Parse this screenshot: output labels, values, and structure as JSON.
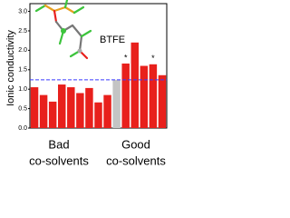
{
  "chart_data": {
    "type": "bar",
    "y_label": "Ionic conductivity",
    "values": [
      1.05,
      0.85,
      0.68,
      1.12,
      1.05,
      0.9,
      1.03,
      0.66,
      0.85,
      1.24,
      1.66,
      2.2,
      1.6,
      1.64,
      1.36
    ],
    "colors": [
      "#e8201c",
      "#e8201c",
      "#e8201c",
      "#e8201c",
      "#e8201c",
      "#e8201c",
      "#e8201c",
      "#e8201c",
      "#e8201c",
      "#c4c4c4",
      "#e8201c",
      "#e8201c",
      "#e8201c",
      "#e8201c",
      "#e8201c"
    ],
    "ylim": [
      0,
      3.2
    ],
    "yticks": [
      {
        "value": 0,
        "label": "0.0"
      },
      0.5,
      {
        "value": 1,
        "label": "1.0"
      },
      1.5,
      {
        "value": 2,
        "label": "2.0"
      },
      2.5,
      {
        "value": 3,
        "label": "3.0"
      }
    ],
    "reference_line": 1.24,
    "reference_color": "#3b3bff",
    "annotations": [
      "BTFE",
      "*",
      "*"
    ],
    "group_labels": [
      [
        "Bad",
        "co-solvents"
      ],
      [
        "Good",
        "co-solvents"
      ]
    ]
  }
}
